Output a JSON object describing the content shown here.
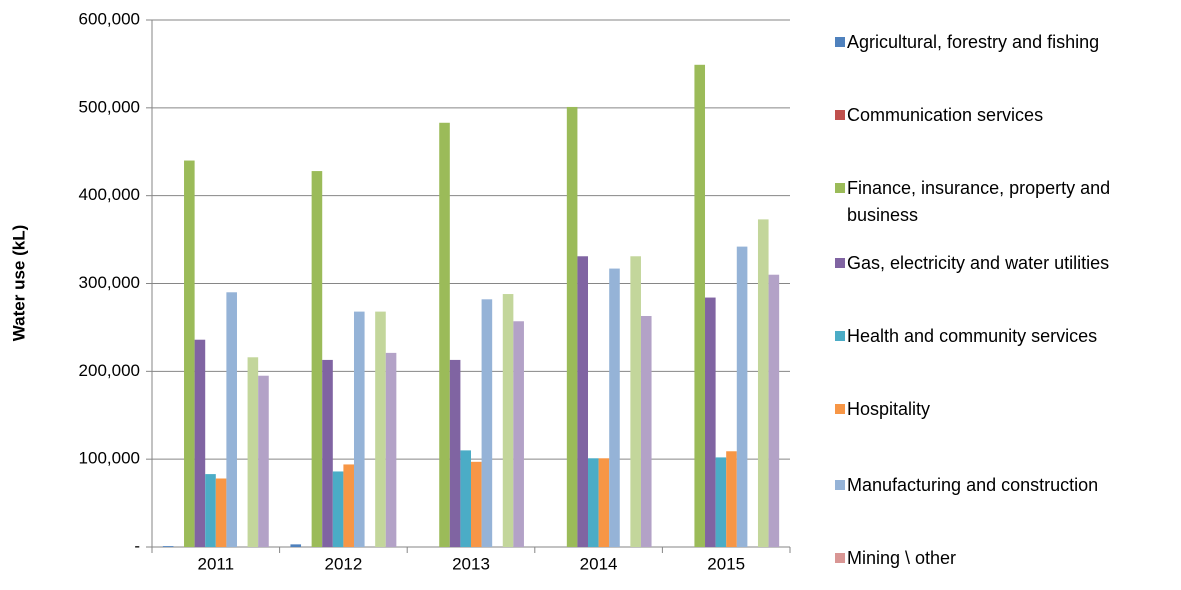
{
  "chart_data": {
    "type": "bar",
    "y_label": "Water use (kL)",
    "categories": [
      "2011",
      "2012",
      "2013",
      "2014",
      "2015"
    ],
    "ylim": [
      0,
      600000
    ],
    "yticks": [
      {
        "value": 0,
        "label": "-"
      },
      {
        "value": 100000,
        "label": "100,000"
      },
      {
        "value": 200000,
        "label": "200,000"
      },
      {
        "value": 300000,
        "label": "300,000"
      },
      {
        "value": 400000,
        "label": "400,000"
      },
      {
        "value": 500000,
        "label": "500,000"
      },
      {
        "value": 600000,
        "label": "600,000"
      }
    ],
    "grid": true,
    "legend": "right",
    "series": [
      {
        "name": "Agricultural, forestry and fishing",
        "color": "#4f81bd",
        "values": [
          1000,
          3000,
          0,
          0,
          0
        ]
      },
      {
        "name": "Communication services",
        "color": "#c0504d",
        "values": [
          0,
          0,
          0,
          0,
          0
        ]
      },
      {
        "name": "Finance, insurance, property and business",
        "color": "#9bbb59",
        "values": [
          440000,
          428000,
          483000,
          501000,
          549000
        ]
      },
      {
        "name": "Gas, electricity and water utilities",
        "color": "#8064a2",
        "values": [
          236000,
          213000,
          213000,
          331000,
          284000
        ]
      },
      {
        "name": "Health and community services",
        "color": "#4bacc6",
        "values": [
          83000,
          86000,
          110000,
          101000,
          102000
        ]
      },
      {
        "name": "Hospitality",
        "color": "#f79646",
        "values": [
          78000,
          94000,
          97000,
          101000,
          109000
        ]
      },
      {
        "name": "Manufacturing and construction",
        "color": "#95b3d7",
        "values": [
          290000,
          268000,
          282000,
          317000,
          342000
        ]
      },
      {
        "name": "Mining \\ other",
        "color": "#d99694",
        "values": [
          0,
          0,
          0,
          0,
          0
        ]
      },
      {
        "color": "#c3d69b",
        "values": [
          216000,
          268000,
          288000,
          331000,
          373000
        ]
      },
      {
        "color": "#b3a2c7",
        "values": [
          195000,
          221000,
          257000,
          263000,
          310000
        ]
      }
    ]
  }
}
